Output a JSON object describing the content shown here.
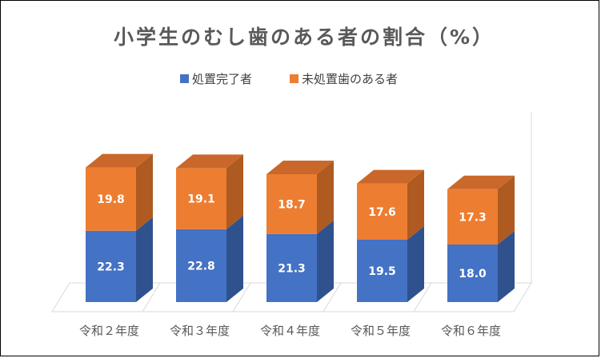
{
  "colors": {
    "series1_front": "#4472c4",
    "series1_side": "#2f528f",
    "series1_top": "#3a64b0",
    "series2_front": "#ed7d31",
    "series2_side": "#ae5a21",
    "series2_top": "#c9682a",
    "floor": "#d9d9d9",
    "text": "#595959"
  },
  "chart_data": {
    "type": "bar",
    "stacked": true,
    "3d": true,
    "title": "小学生のむし歯のある者の割合（%）",
    "categories": [
      "令和２年度",
      "令和３年度",
      "令和４年度",
      "令和５年度",
      "令和６年度"
    ],
    "series": [
      {
        "name": "処置完了者",
        "values": [
          22.3,
          22.8,
          21.3,
          19.5,
          18.0
        ]
      },
      {
        "name": "未処置歯のある者",
        "values": [
          19.8,
          19.1,
          18.7,
          17.6,
          17.3
        ]
      }
    ],
    "data_labels": true,
    "legend": "top-center",
    "grid": false
  }
}
